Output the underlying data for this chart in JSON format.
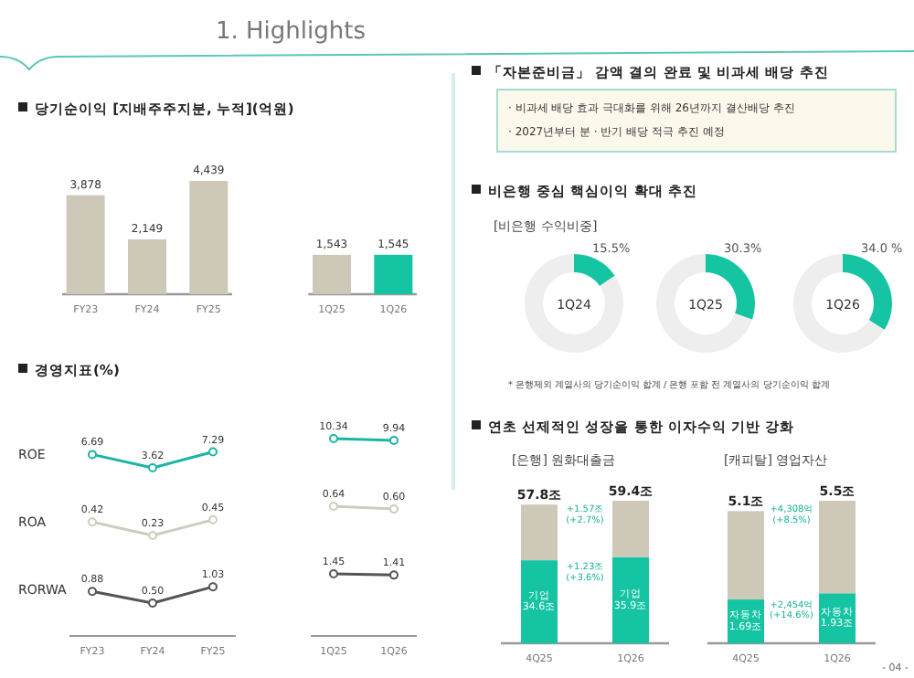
{
  "chart_data": [
    {
      "type": "bar",
      "title": "당기순이익 [지배주주지분, 누적](억원)",
      "annotations": [
        "1. Highlights"
      ],
      "categories": [
        "FY23",
        "FY24",
        "FY25",
        null,
        "1Q25",
        "1Q26"
      ],
      "values": [
        3878,
        2149,
        4439,
        null,
        1543,
        1545
      ],
      "colors": [
        "#cdc8b8",
        "#cdc8b8",
        "#cdc8b8",
        null,
        "#cdc8b8",
        "#14c4a2"
      ],
      "value_labels": [
        "3,878",
        "2,149",
        "4,439",
        null,
        "1,543",
        "1,545"
      ]
    },
    {
      "type": "line",
      "title": "경영지표(%)",
      "categories": [
        null,
        null,
        null,
        null,
        null,
        null
      ],
      "marker": "circle",
      "series": [
        {
          "name": "ROE",
          "color": "#1cb5a3",
          "values": [
            6.69,
            3.62,
            7.29,
            null,
            10.34,
            9.94
          ],
          "value_labels": [
            "6.69",
            "3.62",
            "7.29",
            null,
            "10.34",
            "9.94"
          ]
        }
      ]
    },
    {
      "type": "line",
      "categories": [
        null,
        null,
        null,
        null,
        null,
        null
      ],
      "marker": "circle",
      "series": [
        {
          "name": "ROA",
          "color": "#cfcbbd",
          "values": [
            0.42,
            0.23,
            0.45,
            null,
            0.64,
            0.6
          ],
          "value_labels": [
            "0.42",
            "0.23",
            "0.45",
            null,
            "0.64",
            "0.60"
          ]
        }
      ]
    },
    {
      "type": "line",
      "categories": [
        "FY23",
        "FY24",
        "FY25",
        null,
        "1Q25",
        "1Q26"
      ],
      "marker": "circle",
      "series": [
        {
          "name": "RORWA",
          "color": "#555555",
          "values": [
            0.88,
            0.5,
            1.03,
            null,
            1.45,
            1.41
          ],
          "value_labels": [
            "0.88",
            "0.50",
            "1.03",
            null,
            "1.45",
            "1.41"
          ]
        }
      ]
    },
    {
      "type": "other",
      "title": "「자본준비금」 감액 결의 완료 및 비과세 배당 추진",
      "annotations": [
        "· 비과세 배당 효과 극대화를 위해 26년까지 결산배당 추진",
        "· 2027년부터 분 · 반기 배당 적극 추진 예정"
      ]
    },
    {
      "type": "donut",
      "title": "비은행 중심 핵심이익 확대 추진",
      "subtitle": "[비은행 수익비중]",
      "categories": [
        null,
        null
      ],
      "values": [
        15.5,
        84.5
      ],
      "colors": [
        "#14c4a2",
        "#eeeeee"
      ],
      "value_labels": [
        "15.5%",
        null
      ],
      "annotations": [
        "1Q24"
      ]
    },
    {
      "type": "donut",
      "categories": [
        null,
        null
      ],
      "values": [
        30.3,
        69.7
      ],
      "colors": [
        "#14c4a2",
        "#eeeeee"
      ],
      "value_labels": [
        "30.3%",
        null
      ],
      "annotations": [
        "1Q25"
      ]
    },
    {
      "type": "donut",
      "categories": [
        null,
        null
      ],
      "values": [
        34.0,
        66.0
      ],
      "colors": [
        "#14c4a2",
        "#eeeeee"
      ],
      "value_labels": [
        "34.0 %",
        null
      ],
      "annotations": [
        "1Q26",
        "* 은행제외 계열사의 당기순이익 합계 / 은행 포함 전 계열사의 당기순이익 합계"
      ]
    },
    {
      "type": "bar",
      "stacked": true,
      "title": "연초 선제적인 성장을 통한 이자수익 기반 강화",
      "subtitle": "[은행] 원화대출금",
      "categories": [
        "4Q25",
        "1Q26"
      ],
      "series": [
        {
          "name": "기업",
          "color": "#14c4a2",
          "values": [
            34.6,
            35.9
          ],
          "value_labels": [
            "34.6조",
            "35.9조"
          ]
        },
        {
          "color": "#cdc8b8",
          "values": [
            23.2,
            23.5
          ]
        }
      ],
      "totals": [
        "57.8조",
        "59.4조"
      ],
      "annotations": [
        "+1.57조\n(+2.7%)",
        "+1.23조\n(+3.6%)"
      ]
    },
    {
      "type": "bar",
      "stacked": true,
      "subtitle": "[캐피탈] 영업자산",
      "categories": [
        "4Q25",
        "1Q26"
      ],
      "series": [
        {
          "name": "자동차",
          "color": "#14c4a2",
          "values": [
            1.69,
            1.93
          ],
          "value_labels": [
            "1.69조",
            "1.93조"
          ]
        },
        {
          "color": "#cdc8b8",
          "values": [
            3.41,
            3.57
          ]
        }
      ],
      "totals": [
        "5.1조",
        "5.5조"
      ],
      "annotations": [
        "+4,308억\n(+8.5%)",
        "+2,454억\n(+14.6%)",
        "- 04 -"
      ]
    }
  ]
}
